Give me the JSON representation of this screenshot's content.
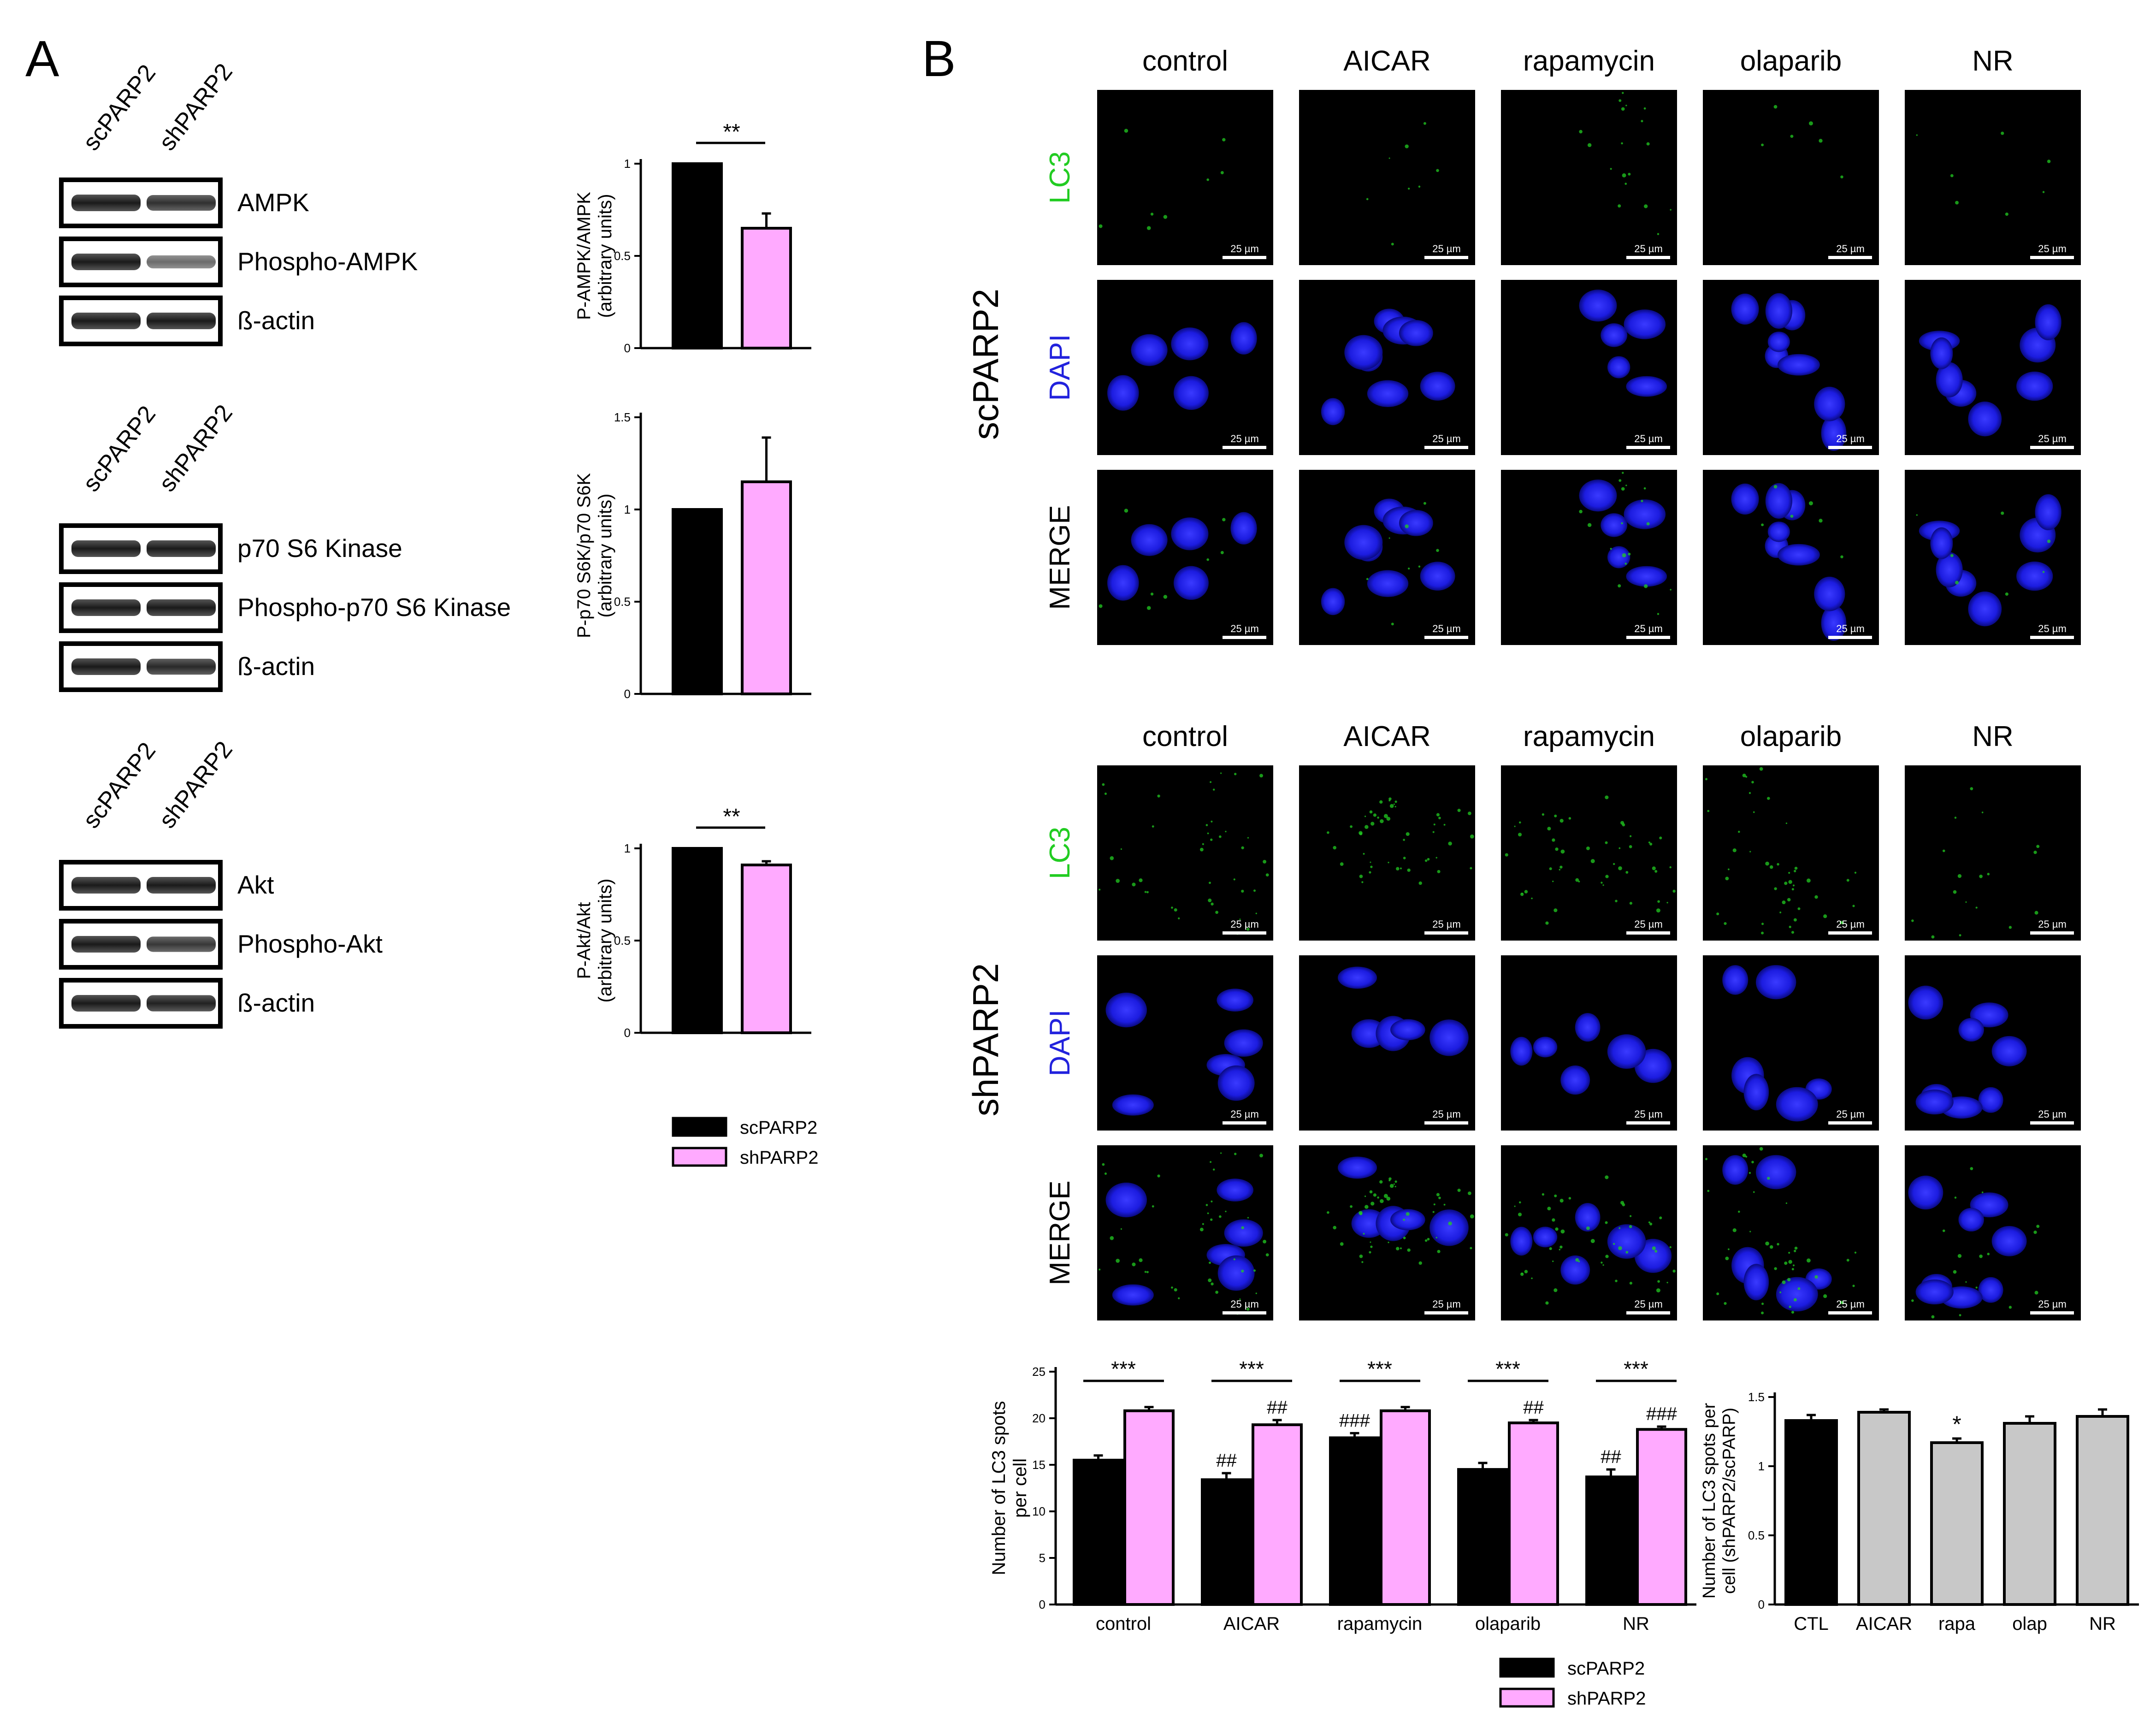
{
  "panel_letters": {
    "a": "A",
    "b": "B"
  },
  "colors": {
    "sc": "#000000",
    "sh": "#ffaaff",
    "grey": "#c8c8c8",
    "lc3": "#22cc22",
    "dapi": "#2222dd",
    "micro_bg": "#000000"
  },
  "panelA": {
    "lanes": [
      "scPARP2",
      "shPARP2"
    ],
    "blots": [
      {
        "rows": [
          "AMPK",
          "Phospho-AMPK",
          "ß-actin"
        ]
      },
      {
        "rows": [
          "p70 S6 Kinase",
          "Phospho-p70 S6 Kinase",
          "ß-actin"
        ]
      },
      {
        "rows": [
          "Akt",
          "Phospho-Akt",
          "ß-actin"
        ]
      }
    ],
    "legend": [
      "scPARP2",
      "shPARP2"
    ]
  },
  "panelB": {
    "conditions": [
      "control",
      "AICAR",
      "rapamycin",
      "olaparib",
      "NR"
    ],
    "channels": [
      "LC3",
      "DAPI",
      "MERGE"
    ],
    "groups": [
      "scPARP2",
      "shPARP2"
    ],
    "scale_bar": "25 µm",
    "legend": [
      "scPARP2",
      "shPARP2"
    ]
  },
  "chart_data": [
    {
      "type": "bar",
      "ylabel": [
        "P-AMPK/AMPK",
        "(arbitrary units)"
      ],
      "series": [
        {
          "name": "scPARP2",
          "values": [
            1.0
          ]
        },
        {
          "name": "shPARP2",
          "values": [
            0.65
          ]
        }
      ],
      "errors": [
        0,
        0.08
      ],
      "ylim": [
        0,
        1
      ],
      "yticks": [
        0,
        0.5,
        1
      ],
      "ytick_labels": [
        "0",
        "0.5",
        "1"
      ],
      "significance": "**"
    },
    {
      "type": "bar",
      "ylabel": [
        "P-p70 S6K/p70 S6K",
        "(arbitrary units)"
      ],
      "series": [
        {
          "name": "scPARP2",
          "values": [
            1.0
          ]
        },
        {
          "name": "shPARP2",
          "values": [
            1.15
          ]
        }
      ],
      "errors": [
        0,
        0.24
      ],
      "ylim": [
        0,
        1.5
      ],
      "yticks": [
        0,
        0.5,
        1,
        1.5
      ],
      "ytick_labels": [
        "0",
        "0.5",
        "1",
        "1.5"
      ],
      "significance": ""
    },
    {
      "type": "bar",
      "ylabel": [
        "P-Akt/Akt",
        "(arbitrary units)"
      ],
      "series": [
        {
          "name": "scPARP2",
          "values": [
            1.0
          ]
        },
        {
          "name": "shPARP2",
          "values": [
            0.91
          ]
        }
      ],
      "errors": [
        0,
        0.02
      ],
      "ylim": [
        0,
        1
      ],
      "yticks": [
        0,
        0.5,
        1
      ],
      "ytick_labels": [
        "0",
        "0.5",
        "1"
      ],
      "significance": "**"
    },
    {
      "type": "bar",
      "categories": [
        "control",
        "AICAR",
        "rapamycin",
        "olaparib",
        "NR"
      ],
      "ylabel": [
        "Number of LC3 spots",
        "per cell"
      ],
      "series": [
        {
          "name": "scPARP2",
          "values": [
            15.5,
            13.4,
            17.9,
            14.5,
            13.7
          ]
        },
        {
          "name": "shPARP2",
          "values": [
            20.8,
            19.3,
            20.8,
            19.5,
            18.8
          ]
        }
      ],
      "errors": {
        "scPARP2": [
          0.5,
          0.7,
          0.5,
          0.7,
          0.8
        ],
        "shPARP2": [
          0.4,
          0.5,
          0.4,
          0.3,
          0.3
        ]
      },
      "ylim": [
        0,
        25
      ],
      "yticks": [
        0,
        5,
        10,
        15,
        20,
        25
      ],
      "ytick_labels": [
        "0",
        "5",
        "10",
        "15",
        "20",
        "25"
      ],
      "significance": [
        "***",
        "***",
        "***",
        "***",
        "***"
      ],
      "hash_sc": [
        "",
        "##",
        "###",
        "",
        "##"
      ],
      "hash_sh": [
        "",
        "##",
        "",
        "##",
        "###"
      ]
    },
    {
      "type": "bar",
      "categories": [
        "CTL",
        "AICAR",
        "rapa",
        "olap",
        "NR"
      ],
      "ylabel": [
        "Number of LC3 spots per",
        "cell (shPARP2/scPARP)"
      ],
      "series": [
        {
          "name": "",
          "values": [
            1.33,
            1.39,
            1.17,
            1.31,
            1.36
          ]
        }
      ],
      "errors": [
        0.04,
        0.02,
        0.03,
        0.05,
        0.05
      ],
      "ylim": [
        0,
        1.5
      ],
      "yticks": [
        0,
        0.5,
        1,
        1.5
      ],
      "ytick_labels": [
        "0",
        "0.5",
        "1",
        "1.5"
      ],
      "marks": [
        "",
        "",
        "*",
        "",
        ""
      ]
    }
  ]
}
